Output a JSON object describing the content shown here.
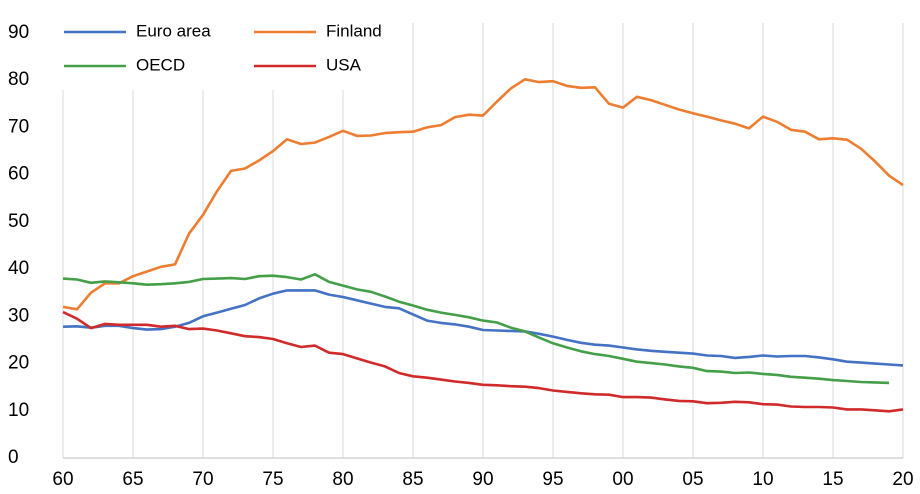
{
  "chart_data": {
    "type": "line",
    "x": [
      1960,
      1961,
      1962,
      1963,
      1964,
      1965,
      1966,
      1967,
      1968,
      1969,
      1970,
      1971,
      1972,
      1973,
      1974,
      1975,
      1976,
      1977,
      1978,
      1979,
      1980,
      1981,
      1982,
      1983,
      1984,
      1985,
      1986,
      1987,
      1988,
      1989,
      1990,
      1991,
      1992,
      1993,
      1994,
      1995,
      1996,
      1997,
      1998,
      1999,
      2000,
      2001,
      2002,
      2003,
      2004,
      2005,
      2006,
      2007,
      2008,
      2009,
      2010,
      2011,
      2012,
      2013,
      2014,
      2015,
      2016,
      2017,
      2018,
      2019,
      2020
    ],
    "series": [
      {
        "name": "Euro area",
        "color": "#4472c4",
        "values": [
          27.8,
          27.9,
          27.6,
          28,
          28,
          27.5,
          27.2,
          27.3,
          27.8,
          28.6,
          30,
          30.8,
          31.6,
          32.4,
          33.8,
          34.8,
          35.5,
          35.5,
          35.5,
          34.6,
          34.1,
          33.4,
          32.7,
          32,
          31.7,
          30.4,
          29.1,
          28.6,
          28.3,
          27.8,
          27.1,
          27,
          26.9,
          26.8,
          26.3,
          25.7,
          25,
          24.4,
          24,
          23.8,
          23.4,
          23,
          22.7,
          22.5,
          22.3,
          22.1,
          21.7,
          21.6,
          21.2,
          21.4,
          21.7,
          21.5,
          21.6,
          21.6,
          21.3,
          20.9,
          20.4,
          20.2,
          20,
          19.8,
          19.6
        ]
      },
      {
        "name": "Finland",
        "color": "#ed7d31",
        "values": [
          32,
          31.5,
          35,
          37,
          37,
          38.5,
          39.5,
          40.5,
          41,
          47.5,
          51.5,
          56.5,
          60.8,
          61.3,
          63,
          65,
          67.5,
          66.5,
          66.8,
          68,
          69.3,
          68.2,
          68.3,
          68.8,
          69,
          69.1,
          70,
          70.5,
          72.2,
          72.7,
          72.5,
          75.5,
          78.3,
          80.2,
          79.6,
          79.8,
          78.8,
          78.4,
          78.5,
          75,
          74.2,
          76.5,
          75.8,
          74.8,
          73.8,
          73,
          72.3,
          71.5,
          70.8,
          69.8,
          72.3,
          71.2,
          69.5,
          69.1,
          67.5,
          67.7,
          67.4,
          65.5,
          62.8,
          59.8,
          57.8
        ]
      },
      {
        "name": "OECD",
        "color": "#44a048",
        "values": [
          38,
          37.8,
          37.1,
          37.4,
          37.2,
          37,
          36.7,
          36.8,
          37,
          37.3,
          37.9,
          38,
          38.1,
          37.9,
          38.5,
          38.6,
          38.3,
          37.8,
          38.9,
          37.3,
          36.5,
          35.7,
          35.2,
          34.2,
          33.1,
          32.3,
          31.4,
          30.8,
          30.3,
          29.8,
          29.1,
          28.7,
          27.6,
          26.8,
          25.5,
          24.3,
          23.4,
          22.6,
          22,
          21.6,
          21,
          20.4,
          20.1,
          19.8,
          19.4,
          19.1,
          18.4,
          18.3,
          18,
          18.1,
          17.8,
          17.6,
          17.2,
          17,
          16.8,
          16.5,
          16.3,
          16.1,
          16,
          15.9,
          null
        ]
      },
      {
        "name": "USA",
        "color": "#d12a2a",
        "values": [
          30.9,
          29.5,
          27.5,
          28.4,
          28.2,
          28.2,
          28.2,
          27.8,
          28,
          27.3,
          27.4,
          27,
          26.4,
          25.8,
          25.6,
          25.2,
          24.3,
          23.5,
          23.8,
          22.3,
          22,
          21.1,
          20.2,
          19.4,
          18,
          17.3,
          17,
          16.6,
          16.2,
          15.9,
          15.5,
          15.4,
          15.2,
          15.1,
          14.8,
          14.3,
          14,
          13.7,
          13.5,
          13.4,
          12.9,
          12.9,
          12.8,
          12.4,
          12.1,
          12,
          11.6,
          11.7,
          11.9,
          11.8,
          11.4,
          11.3,
          10.9,
          10.8,
          10.8,
          10.7,
          10.3,
          10.3,
          10.1,
          9.9,
          10.3
        ]
      }
    ],
    "xlim": [
      1960,
      2020
    ],
    "xticks": [
      {
        "value": 1960,
        "label": "60"
      },
      {
        "value": 1965,
        "label": "65"
      },
      {
        "value": 1970,
        "label": "70"
      },
      {
        "value": 1975,
        "label": "75"
      },
      {
        "value": 1980,
        "label": "80"
      },
      {
        "value": 1985,
        "label": "85"
      },
      {
        "value": 1990,
        "label": "90"
      },
      {
        "value": 1995,
        "label": "95"
      },
      {
        "value": 2000,
        "label": "00"
      },
      {
        "value": 2005,
        "label": "05"
      },
      {
        "value": 2010,
        "label": "10"
      },
      {
        "value": 2015,
        "label": "15"
      },
      {
        "value": 2020,
        "label": "20"
      }
    ],
    "ylim": [
      0,
      90
    ],
    "yticks": [
      0,
      10,
      20,
      30,
      40,
      50,
      60,
      70,
      80,
      90
    ],
    "grid": "x",
    "legend": "upper left"
  }
}
